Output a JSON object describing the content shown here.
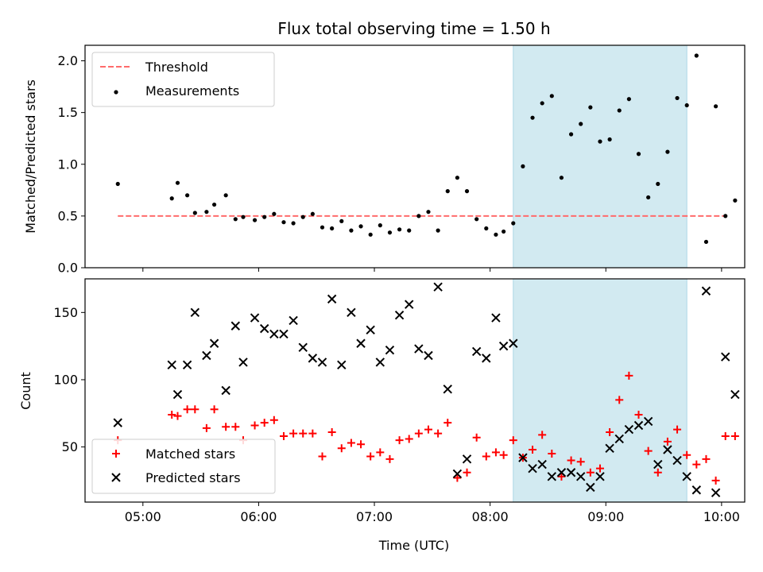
{
  "title": "Flux total observing time = 1.50 h",
  "colors": {
    "threshold": "#ff6b6b",
    "measurement": "#000000",
    "matched": "#ff0000",
    "predicted": "#000000",
    "span": "#add8e6"
  },
  "chart_data": [
    {
      "type": "scatter",
      "ylabel": "Matched/Predicted stars",
      "xlim": [
        "04:30",
        "10:12"
      ],
      "ylim": [
        0,
        2.15
      ],
      "y_ticks": [
        0.0,
        0.5,
        1.0,
        1.5,
        2.0
      ],
      "y_tick_labels": [
        "0.0",
        "0.5",
        "1.0",
        "1.5",
        "2.0"
      ],
      "highlight_span": [
        "08:12",
        "09:42"
      ],
      "legend_position": "top-left",
      "legend": [
        {
          "label": "Threshold",
          "style": "dashed-line"
        },
        {
          "label": "Measurements",
          "style": "dot"
        }
      ],
      "threshold": {
        "name": "Threshold",
        "y": 0.5,
        "x_range": [
          "04:47",
          "10:02"
        ]
      },
      "series": [
        {
          "name": "Measurements",
          "points": [
            [
              "04:47",
              0.81
            ],
            [
              "05:15",
              0.67
            ],
            [
              "05:18",
              0.82
            ],
            [
              "05:23",
              0.7
            ],
            [
              "05:27",
              0.53
            ],
            [
              "05:33",
              0.54
            ],
            [
              "05:37",
              0.61
            ],
            [
              "05:43",
              0.7
            ],
            [
              "05:48",
              0.47
            ],
            [
              "05:52",
              0.49
            ],
            [
              "05:58",
              0.46
            ],
            [
              "06:03",
              0.49
            ],
            [
              "06:08",
              0.52
            ],
            [
              "06:13",
              0.44
            ],
            [
              "06:18",
              0.43
            ],
            [
              "06:23",
              0.49
            ],
            [
              "06:28",
              0.52
            ],
            [
              "06:33",
              0.39
            ],
            [
              "06:38",
              0.38
            ],
            [
              "06:43",
              0.45
            ],
            [
              "06:48",
              0.36
            ],
            [
              "06:53",
              0.4
            ],
            [
              "06:58",
              0.32
            ],
            [
              "07:03",
              0.41
            ],
            [
              "07:08",
              0.34
            ],
            [
              "07:13",
              0.37
            ],
            [
              "07:18",
              0.36
            ],
            [
              "07:23",
              0.5
            ],
            [
              "07:28",
              0.54
            ],
            [
              "07:33",
              0.36
            ],
            [
              "07:38",
              0.74
            ],
            [
              "07:43",
              0.87
            ],
            [
              "07:48",
              0.74
            ],
            [
              "07:53",
              0.47
            ],
            [
              "07:58",
              0.38
            ],
            [
              "08:03",
              0.32
            ],
            [
              "08:07",
              0.35
            ],
            [
              "08:12",
              0.43
            ],
            [
              "08:17",
              0.98
            ],
            [
              "08:22",
              1.45
            ],
            [
              "08:27",
              1.59
            ],
            [
              "08:32",
              1.66
            ],
            [
              "08:37",
              0.87
            ],
            [
              "08:42",
              1.29
            ],
            [
              "08:47",
              1.39
            ],
            [
              "08:52",
              1.55
            ],
            [
              "08:57",
              1.22
            ],
            [
              "09:02",
              1.24
            ],
            [
              "09:07",
              1.52
            ],
            [
              "09:12",
              1.63
            ],
            [
              "09:17",
              1.1
            ],
            [
              "09:22",
              0.68
            ],
            [
              "09:27",
              0.81
            ],
            [
              "09:32",
              1.12
            ],
            [
              "09:37",
              1.64
            ],
            [
              "09:42",
              1.57
            ],
            [
              "09:47",
              2.05
            ],
            [
              "09:52",
              0.25
            ],
            [
              "09:57",
              1.56
            ],
            [
              "10:02",
              0.5
            ],
            [
              "10:07",
              0.65
            ]
          ]
        }
      ]
    },
    {
      "type": "scatter",
      "xlabel": "Time (UTC)",
      "ylabel": "Count",
      "xlim": [
        "04:30",
        "10:12"
      ],
      "ylim": [
        9,
        175
      ],
      "y_ticks": [
        50,
        100,
        150
      ],
      "y_tick_labels": [
        "50",
        "100",
        "150"
      ],
      "x_ticks": [
        "05:00",
        "06:00",
        "07:00",
        "08:00",
        "09:00",
        "10:00"
      ],
      "x_tick_labels": [
        "05:00",
        "06:00",
        "07:00",
        "08:00",
        "09:00",
        "10:00"
      ],
      "highlight_span": [
        "08:12",
        "09:42"
      ],
      "legend_position": "bottom-left",
      "legend": [
        {
          "label": "Matched stars",
          "style": "plus"
        },
        {
          "label": "Predicted stars",
          "style": "cross"
        }
      ],
      "series": [
        {
          "name": "Matched stars",
          "points": [
            [
              "04:47",
              55
            ],
            [
              "05:15",
              74
            ],
            [
              "05:18",
              73
            ],
            [
              "05:23",
              78
            ],
            [
              "05:27",
              78
            ],
            [
              "05:33",
              64
            ],
            [
              "05:37",
              78
            ],
            [
              "05:43",
              65
            ],
            [
              "05:48",
              65
            ],
            [
              "05:52",
              55
            ],
            [
              "05:58",
              66
            ],
            [
              "06:03",
              68
            ],
            [
              "06:08",
              70
            ],
            [
              "06:13",
              58
            ],
            [
              "06:18",
              60
            ],
            [
              "06:23",
              60
            ],
            [
              "06:28",
              60
            ],
            [
              "06:33",
              43
            ],
            [
              "06:38",
              61
            ],
            [
              "06:43",
              49
            ],
            [
              "06:48",
              53
            ],
            [
              "06:53",
              52
            ],
            [
              "06:58",
              43
            ],
            [
              "07:03",
              46
            ],
            [
              "07:08",
              41
            ],
            [
              "07:13",
              55
            ],
            [
              "07:18",
              56
            ],
            [
              "07:23",
              60
            ],
            [
              "07:28",
              63
            ],
            [
              "07:33",
              60
            ],
            [
              "07:38",
              68
            ],
            [
              "07:43",
              27
            ],
            [
              "07:48",
              31
            ],
            [
              "07:53",
              57
            ],
            [
              "07:58",
              43
            ],
            [
              "08:03",
              46
            ],
            [
              "08:07",
              44
            ],
            [
              "08:12",
              55
            ],
            [
              "08:17",
              42
            ],
            [
              "08:22",
              48
            ],
            [
              "08:27",
              59
            ],
            [
              "08:32",
              45
            ],
            [
              "08:37",
              28
            ],
            [
              "08:42",
              40
            ],
            [
              "08:47",
              39
            ],
            [
              "08:52",
              31
            ],
            [
              "08:57",
              34
            ],
            [
              "09:02",
              61
            ],
            [
              "09:07",
              85
            ],
            [
              "09:12",
              103
            ],
            [
              "09:17",
              74
            ],
            [
              "09:22",
              47
            ],
            [
              "09:27",
              31
            ],
            [
              "09:32",
              54
            ],
            [
              "09:37",
              63
            ],
            [
              "09:42",
              44
            ],
            [
              "09:47",
              37
            ],
            [
              "09:52",
              41
            ],
            [
              "09:57",
              25
            ],
            [
              "10:02",
              58
            ],
            [
              "10:07",
              58
            ]
          ]
        },
        {
          "name": "Predicted stars",
          "points": [
            [
              "04:47",
              68
            ],
            [
              "05:15",
              111
            ],
            [
              "05:18",
              89
            ],
            [
              "05:23",
              111
            ],
            [
              "05:27",
              150
            ],
            [
              "05:33",
              118
            ],
            [
              "05:37",
              127
            ],
            [
              "05:43",
              92
            ],
            [
              "05:48",
              140
            ],
            [
              "05:52",
              113
            ],
            [
              "05:58",
              146
            ],
            [
              "06:03",
              138
            ],
            [
              "06:08",
              134
            ],
            [
              "06:13",
              134
            ],
            [
              "06:18",
              144
            ],
            [
              "06:23",
              124
            ],
            [
              "06:28",
              116
            ],
            [
              "06:33",
              113
            ],
            [
              "06:38",
              160
            ],
            [
              "06:43",
              111
            ],
            [
              "06:48",
              150
            ],
            [
              "06:53",
              127
            ],
            [
              "06:58",
              137
            ],
            [
              "07:03",
              113
            ],
            [
              "07:08",
              122
            ],
            [
              "07:13",
              148
            ],
            [
              "07:18",
              156
            ],
            [
              "07:23",
              123
            ],
            [
              "07:28",
              118
            ],
            [
              "07:33",
              169
            ],
            [
              "07:38",
              93
            ],
            [
              "07:43",
              30
            ],
            [
              "07:48",
              41
            ],
            [
              "07:53",
              121
            ],
            [
              "07:58",
              116
            ],
            [
              "08:03",
              146
            ],
            [
              "08:07",
              125
            ],
            [
              "08:12",
              127
            ],
            [
              "08:17",
              42
            ],
            [
              "08:22",
              34
            ],
            [
              "08:27",
              37
            ],
            [
              "08:32",
              28
            ],
            [
              "08:37",
              31
            ],
            [
              "08:42",
              31
            ],
            [
              "08:47",
              28
            ],
            [
              "08:52",
              20
            ],
            [
              "08:57",
              28
            ],
            [
              "09:02",
              49
            ],
            [
              "09:07",
              56
            ],
            [
              "09:12",
              63
            ],
            [
              "09:17",
              66
            ],
            [
              "09:22",
              69
            ],
            [
              "09:27",
              37
            ],
            [
              "09:32",
              48
            ],
            [
              "09:37",
              40
            ],
            [
              "09:42",
              28
            ],
            [
              "09:47",
              18
            ],
            [
              "09:52",
              166
            ],
            [
              "09:57",
              16
            ],
            [
              "10:02",
              117
            ],
            [
              "10:07",
              89
            ]
          ]
        }
      ]
    }
  ]
}
